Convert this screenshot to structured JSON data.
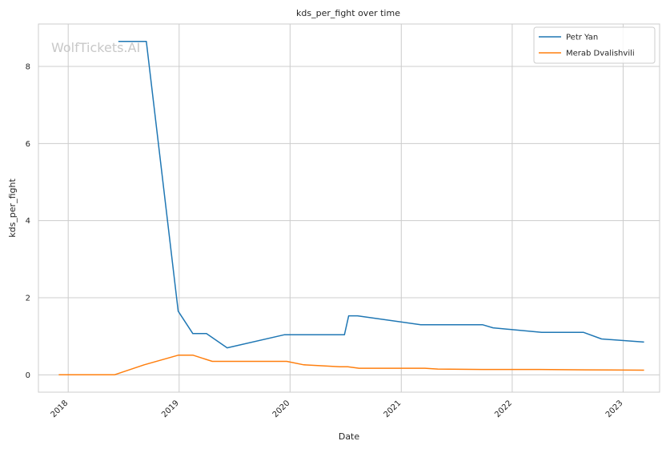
{
  "chart_data": {
    "type": "line",
    "title": "kds_per_fight over time",
    "xlabel": "Date",
    "ylabel": "kds_per_fight",
    "watermark": "WolfTickets.AI",
    "xlim": [
      "2017-09-25",
      "2023-05-01"
    ],
    "ylim": [
      -0.45,
      9.1
    ],
    "x_ticks": [
      "2018-01-01",
      "2019-01-01",
      "2020-01-01",
      "2021-01-01",
      "2022-01-01",
      "2023-01-01"
    ],
    "x_tick_labels": [
      "2018",
      "2019",
      "2020",
      "2021",
      "2022",
      "2023"
    ],
    "y_ticks": [
      0,
      2,
      4,
      6,
      8
    ],
    "y_tick_labels": [
      "0",
      "2",
      "4",
      "6",
      "8"
    ],
    "grid": true,
    "legend_position": "top-right",
    "series": [
      {
        "name": "Petr Yan",
        "color": "#1f77b4",
        "points": [
          [
            "2018-06-15",
            8.65
          ],
          [
            "2018-09-15",
            8.65
          ],
          [
            "2018-12-29",
            1.65
          ],
          [
            "2019-02-15",
            1.07
          ],
          [
            "2019-04-01",
            1.07
          ],
          [
            "2019-06-08",
            0.7
          ],
          [
            "2019-12-14",
            1.04
          ],
          [
            "2020-06-28",
            1.04
          ],
          [
            "2020-07-12",
            1.53
          ],
          [
            "2020-08-10",
            1.53
          ],
          [
            "2021-03-06",
            1.3
          ],
          [
            "2021-09-25",
            1.3
          ],
          [
            "2021-10-30",
            1.22
          ],
          [
            "2022-04-08",
            1.1
          ],
          [
            "2022-08-24",
            1.1
          ],
          [
            "2022-10-22",
            0.93
          ],
          [
            "2023-03-11",
            0.85
          ]
        ]
      },
      {
        "name": "Merab Dvalishvili",
        "color": "#ff7f0e",
        "points": [
          [
            "2017-12-01",
            0.0
          ],
          [
            "2018-06-02",
            0.0
          ],
          [
            "2018-09-08",
            0.26
          ],
          [
            "2018-12-29",
            0.51
          ],
          [
            "2019-02-16",
            0.51
          ],
          [
            "2019-04-20",
            0.35
          ],
          [
            "2019-12-21",
            0.35
          ],
          [
            "2020-02-15",
            0.26
          ],
          [
            "2020-06-13",
            0.21
          ],
          [
            "2020-07-09",
            0.21
          ],
          [
            "2020-08-15",
            0.17
          ],
          [
            "2021-03-20",
            0.17
          ],
          [
            "2021-05-01",
            0.15
          ],
          [
            "2021-09-25",
            0.14
          ],
          [
            "2022-04-01",
            0.14
          ],
          [
            "2022-09-01",
            0.13
          ],
          [
            "2023-03-11",
            0.12
          ]
        ]
      }
    ]
  }
}
